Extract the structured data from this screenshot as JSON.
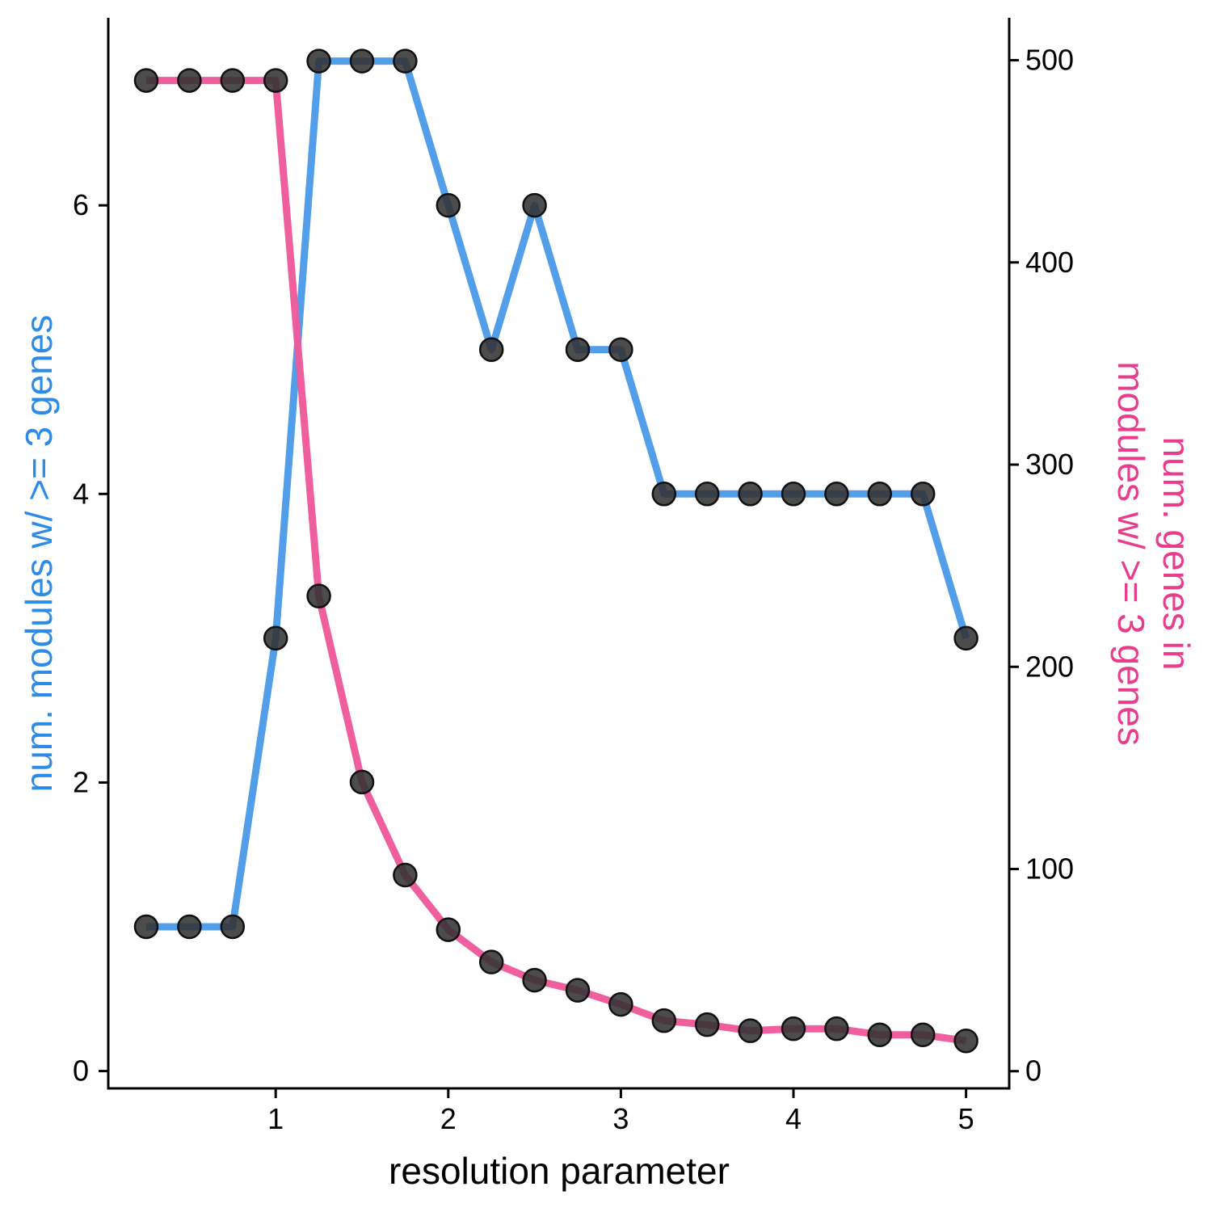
{
  "chart_data": {
    "type": "line",
    "title": "",
    "xlabel": "resolution parameter",
    "ylabel_left": "num. modules w/ >= 3 genes",
    "ylabel_right_lines": [
      "num. genes in",
      "modules w/ >= 3 genes"
    ],
    "xlim": [
      0.03,
      5.25
    ],
    "ylim_left": [
      -0.12,
      7.3
    ],
    "ylim_right": [
      -8.5,
      521
    ],
    "x_ticks": [
      1,
      2,
      3,
      4,
      5
    ],
    "y_left_ticks": [
      0,
      2,
      4,
      6
    ],
    "y_right_ticks": [
      0,
      100,
      200,
      300,
      400,
      500
    ],
    "grid": false,
    "legend": "none",
    "x": [
      0.25,
      0.5,
      0.75,
      1.0,
      1.25,
      1.5,
      1.75,
      2.0,
      2.25,
      2.5,
      2.75,
      3.0,
      3.25,
      3.5,
      3.75,
      4.0,
      4.25,
      4.5,
      4.75,
      5.0
    ],
    "series": [
      {
        "axis": "left",
        "color": "#4C9BE8",
        "values": [
          1,
          1,
          1,
          3,
          7,
          7,
          7,
          6,
          5,
          6,
          5,
          5,
          4,
          4,
          4,
          4,
          4,
          4,
          4,
          3
        ]
      },
      {
        "axis": "right",
        "color": "#EE5A9A",
        "values": [
          490,
          490,
          490,
          490,
          235,
          143,
          97,
          70,
          54,
          45,
          40,
          33,
          25,
          23,
          20,
          21,
          21,
          18,
          18,
          15
        ]
      }
    ],
    "marker_color": "#333333",
    "colors": {
      "left_axis_title": "#2D8BE8",
      "right_axis_title": "#E83C8C"
    }
  }
}
